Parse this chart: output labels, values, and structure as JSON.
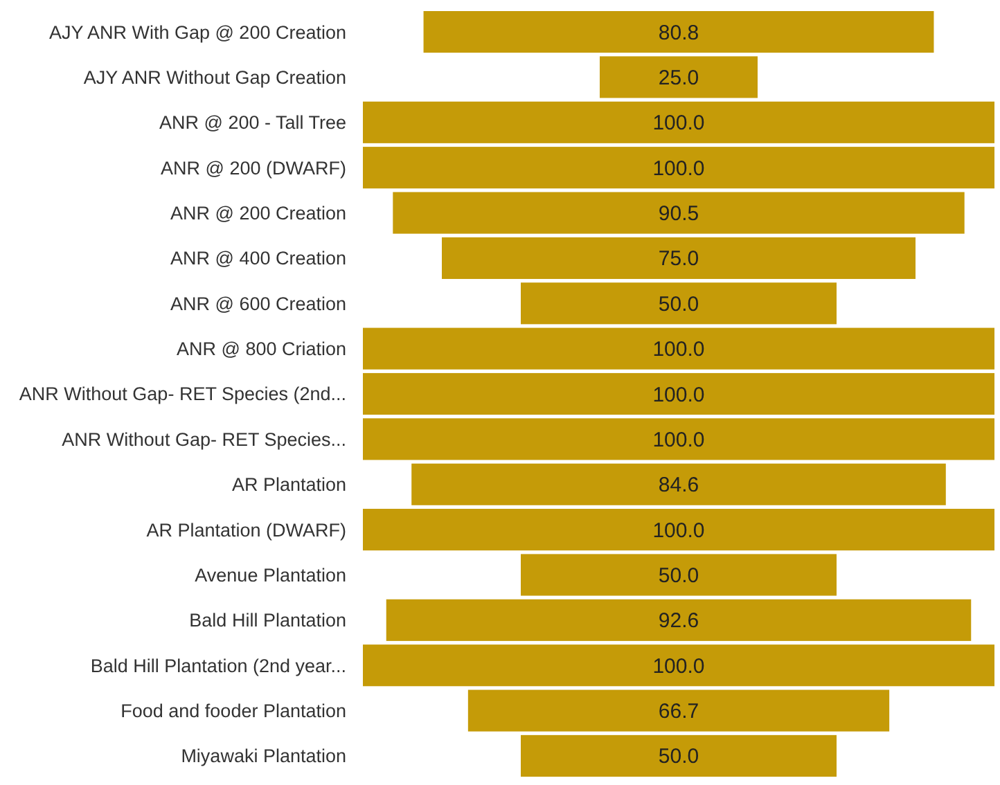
{
  "chart_data": {
    "type": "other",
    "categories": [
      "AJY ANR With Gap @ 200 Creation",
      "AJY ANR Without Gap Creation",
      "ANR @ 200 - Tall Tree",
      "ANR @ 200 (DWARF)",
      "ANR @ 200 Creation",
      "ANR @ 400 Creation",
      "ANR @ 600 Creation",
      "ANR @ 800 Criation",
      "ANR Without Gap- RET Species (2nd...",
      "ANR Without Gap- RET Species...",
      "AR Plantation",
      "AR Plantation (DWARF)",
      "Avenue Plantation",
      "Bald Hill Plantation",
      "Bald Hill Plantation (2nd year...",
      "Food and fooder Plantation",
      "Miyawaki Plantation"
    ],
    "values": [
      80.8,
      25.0,
      100.0,
      100.0,
      90.5,
      75.0,
      50.0,
      100.0,
      100.0,
      100.0,
      84.6,
      100.0,
      50.0,
      92.6,
      100.0,
      66.7,
      50.0
    ],
    "value_labels": [
      "80.8",
      "25.0",
      "100.0",
      "100.0",
      "90.5",
      "75.0",
      "50.0",
      "100.0",
      "100.0",
      "100.0",
      "84.6",
      "100.0",
      "50.0",
      "92.6",
      "100.0",
      "66.7",
      "50.0"
    ],
    "color": "#c59b08"
  }
}
